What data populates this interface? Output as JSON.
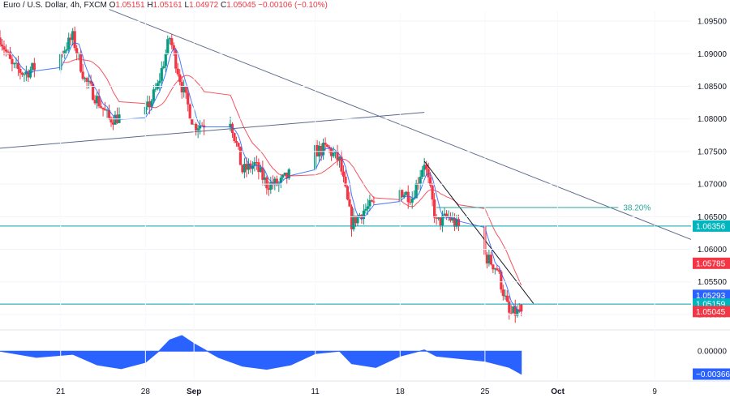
{
  "header": {
    "symbol": "Euro / U.S. Dollar, 4h, FXCM",
    "o_label": "O",
    "o_value": "1.05151",
    "h_label": "H",
    "h_value": "1.05161",
    "l_label": "L",
    "l_value": "1.04972",
    "c_label": "C",
    "c_value": "1.05045",
    "change": "−0.00106 (−0.10%)"
  },
  "colors": {
    "up": "#089981",
    "down": "#f23645",
    "ma_fast": "#2962ff",
    "ma_slow": "#f23645",
    "trendline": "#5b6b8c",
    "hline": "#00a0a8",
    "fib": "#26a69a",
    "osc": "#2962ff",
    "tag_teal": "#00b5bd",
    "tag_red": "#f23645",
    "tag_blue": "#2962ff"
  },
  "chart_data": {
    "type": "candlestick",
    "symbol": "EURUSD",
    "timeframe": "4h",
    "y_range": [
      1.0485,
      1.0965
    ],
    "y_ticks": [
      "1.09500",
      "1.09000",
      "1.08500",
      "1.08000",
      "1.07500",
      "1.07000",
      "1.06500",
      "1.06000",
      "1.05500",
      "1.05000"
    ],
    "x_ticks": [
      {
        "label": "21",
        "date": "2023-08-21"
      },
      {
        "label": "28",
        "date": "2023-08-28"
      },
      {
        "label": "Sep",
        "date": "2023-09-01"
      },
      {
        "label": "11",
        "date": "2023-09-11"
      },
      {
        "label": "18",
        "date": "2023-09-18"
      },
      {
        "label": "25",
        "date": "2023-09-25"
      },
      {
        "label": "Oct",
        "date": "2023-10-01"
      },
      {
        "label": "9",
        "date": "2023-10-09"
      }
    ],
    "x_range": [
      "2023-08-16",
      "2023-10-12"
    ],
    "last_date": "2023-09-28",
    "close_path": [
      {
        "date": "2023-08-16",
        "close": 1.0925
      },
      {
        "date": "2023-08-17",
        "close": 1.088
      },
      {
        "date": "2023-08-18",
        "close": 1.087
      },
      {
        "date": "2023-08-21",
        "close": 1.09
      },
      {
        "date": "2023-08-22",
        "close": 1.0925
      },
      {
        "date": "2023-08-23",
        "close": 1.086
      },
      {
        "date": "2023-08-24",
        "close": 1.083
      },
      {
        "date": "2023-08-25",
        "close": 1.08
      },
      {
        "date": "2023-08-28",
        "close": 1.081
      },
      {
        "date": "2023-08-29",
        "close": 1.085
      },
      {
        "date": "2023-08-30",
        "close": 1.0925
      },
      {
        "date": "2023-08-31",
        "close": 1.085
      },
      {
        "date": "2023-09-01",
        "close": 1.079
      },
      {
        "date": "2023-09-04",
        "close": 1.08
      },
      {
        "date": "2023-09-05",
        "close": 1.072
      },
      {
        "date": "2023-09-06",
        "close": 1.073
      },
      {
        "date": "2023-09-07",
        "close": 1.07
      },
      {
        "date": "2023-09-08",
        "close": 1.07
      },
      {
        "date": "2023-09-11",
        "close": 1.075
      },
      {
        "date": "2023-09-12",
        "close": 1.0755
      },
      {
        "date": "2023-09-13",
        "close": 1.0735
      },
      {
        "date": "2023-09-14",
        "close": 1.064
      },
      {
        "date": "2023-09-15",
        "close": 1.066
      },
      {
        "date": "2023-09-18",
        "close": 1.069
      },
      {
        "date": "2023-09-19",
        "close": 1.068
      },
      {
        "date": "2023-09-20",
        "close": 1.0735
      },
      {
        "date": "2023-09-21",
        "close": 1.064
      },
      {
        "date": "2023-09-22",
        "close": 1.065
      },
      {
        "date": "2023-09-25",
        "close": 1.059
      },
      {
        "date": "2023-09-26",
        "close": 1.057
      },
      {
        "date": "2023-09-27",
        "close": 1.05
      },
      {
        "date": "2023-09-28",
        "close": 1.05045
      }
    ],
    "indicators": [
      {
        "name": "fast moving average",
        "color": "#2962ff"
      },
      {
        "name": "slow moving average",
        "color": "#f23645"
      }
    ],
    "trendlines": [
      {
        "from": {
          "date": "2023-08-16",
          "price": 1.0755
        },
        "to": {
          "date": "2023-09-20",
          "price": 1.081
        }
      },
      {
        "from": {
          "date": "2023-08-25",
          "price": 1.0968
        },
        "to": {
          "date": "2023-10-12",
          "price": 1.0615
        }
      },
      {
        "from": {
          "date": "2023-09-20",
          "price": 1.0735
        },
        "to": {
          "date": "2023-09-29",
          "price": 1.0517
        }
      }
    ],
    "horizontal_lines": [
      {
        "price": 1.06356
      },
      {
        "price": 1.05159
      }
    ],
    "fib_level": {
      "label": "38.20%",
      "price": 1.0664,
      "from_date": "2023-09-21",
      "to_date": "2023-10-06"
    },
    "price_tags": [
      {
        "value": "1.06356",
        "price": 1.06356,
        "color": "#00b5bd"
      },
      {
        "value": "1.05785",
        "price": 1.05785,
        "color": "#f23645"
      },
      {
        "value": "1.05293",
        "price": 1.05293,
        "color": "#2962ff"
      },
      {
        "value": "1.05159",
        "price": 1.05159,
        "color": "#00b5bd"
      },
      {
        "value": "1.05045",
        "price": 1.05045,
        "color": "#f23645"
      }
    ],
    "oscillator": {
      "type": "area",
      "ticks": [
        "0.00000"
      ],
      "last_value": "−0.00366",
      "y_range": [
        -0.0045,
        0.003
      ],
      "points": [
        {
          "date": "2023-08-16",
          "value": 0.0
        },
        {
          "date": "2023-08-19",
          "value": -0.001
        },
        {
          "date": "2023-08-22",
          "value": -0.0005
        },
        {
          "date": "2023-08-24",
          "value": -0.0022
        },
        {
          "date": "2023-08-26",
          "value": -0.0028
        },
        {
          "date": "2023-08-28",
          "value": -0.0018
        },
        {
          "date": "2023-08-29",
          "value": -0.0002
        },
        {
          "date": "2023-08-30",
          "value": 0.0018
        },
        {
          "date": "2023-08-31",
          "value": 0.0025
        },
        {
          "date": "2023-09-01",
          "value": 0.0012
        },
        {
          "date": "2023-09-03",
          "value": -0.001
        },
        {
          "date": "2023-09-05",
          "value": -0.0024
        },
        {
          "date": "2023-09-07",
          "value": -0.0029
        },
        {
          "date": "2023-09-09",
          "value": -0.0022
        },
        {
          "date": "2023-09-11",
          "value": -0.0004
        },
        {
          "date": "2023-09-13",
          "value": 0.0
        },
        {
          "date": "2023-09-14",
          "value": -0.002
        },
        {
          "date": "2023-09-16",
          "value": -0.0026
        },
        {
          "date": "2023-09-18",
          "value": -0.0008
        },
        {
          "date": "2023-09-20",
          "value": 0.0002
        },
        {
          "date": "2023-09-21",
          "value": -0.0008
        },
        {
          "date": "2023-09-23",
          "value": -0.0012
        },
        {
          "date": "2023-09-25",
          "value": -0.0016
        },
        {
          "date": "2023-09-27",
          "value": -0.0026
        },
        {
          "date": "2023-09-28",
          "value": -0.00366
        }
      ]
    }
  }
}
